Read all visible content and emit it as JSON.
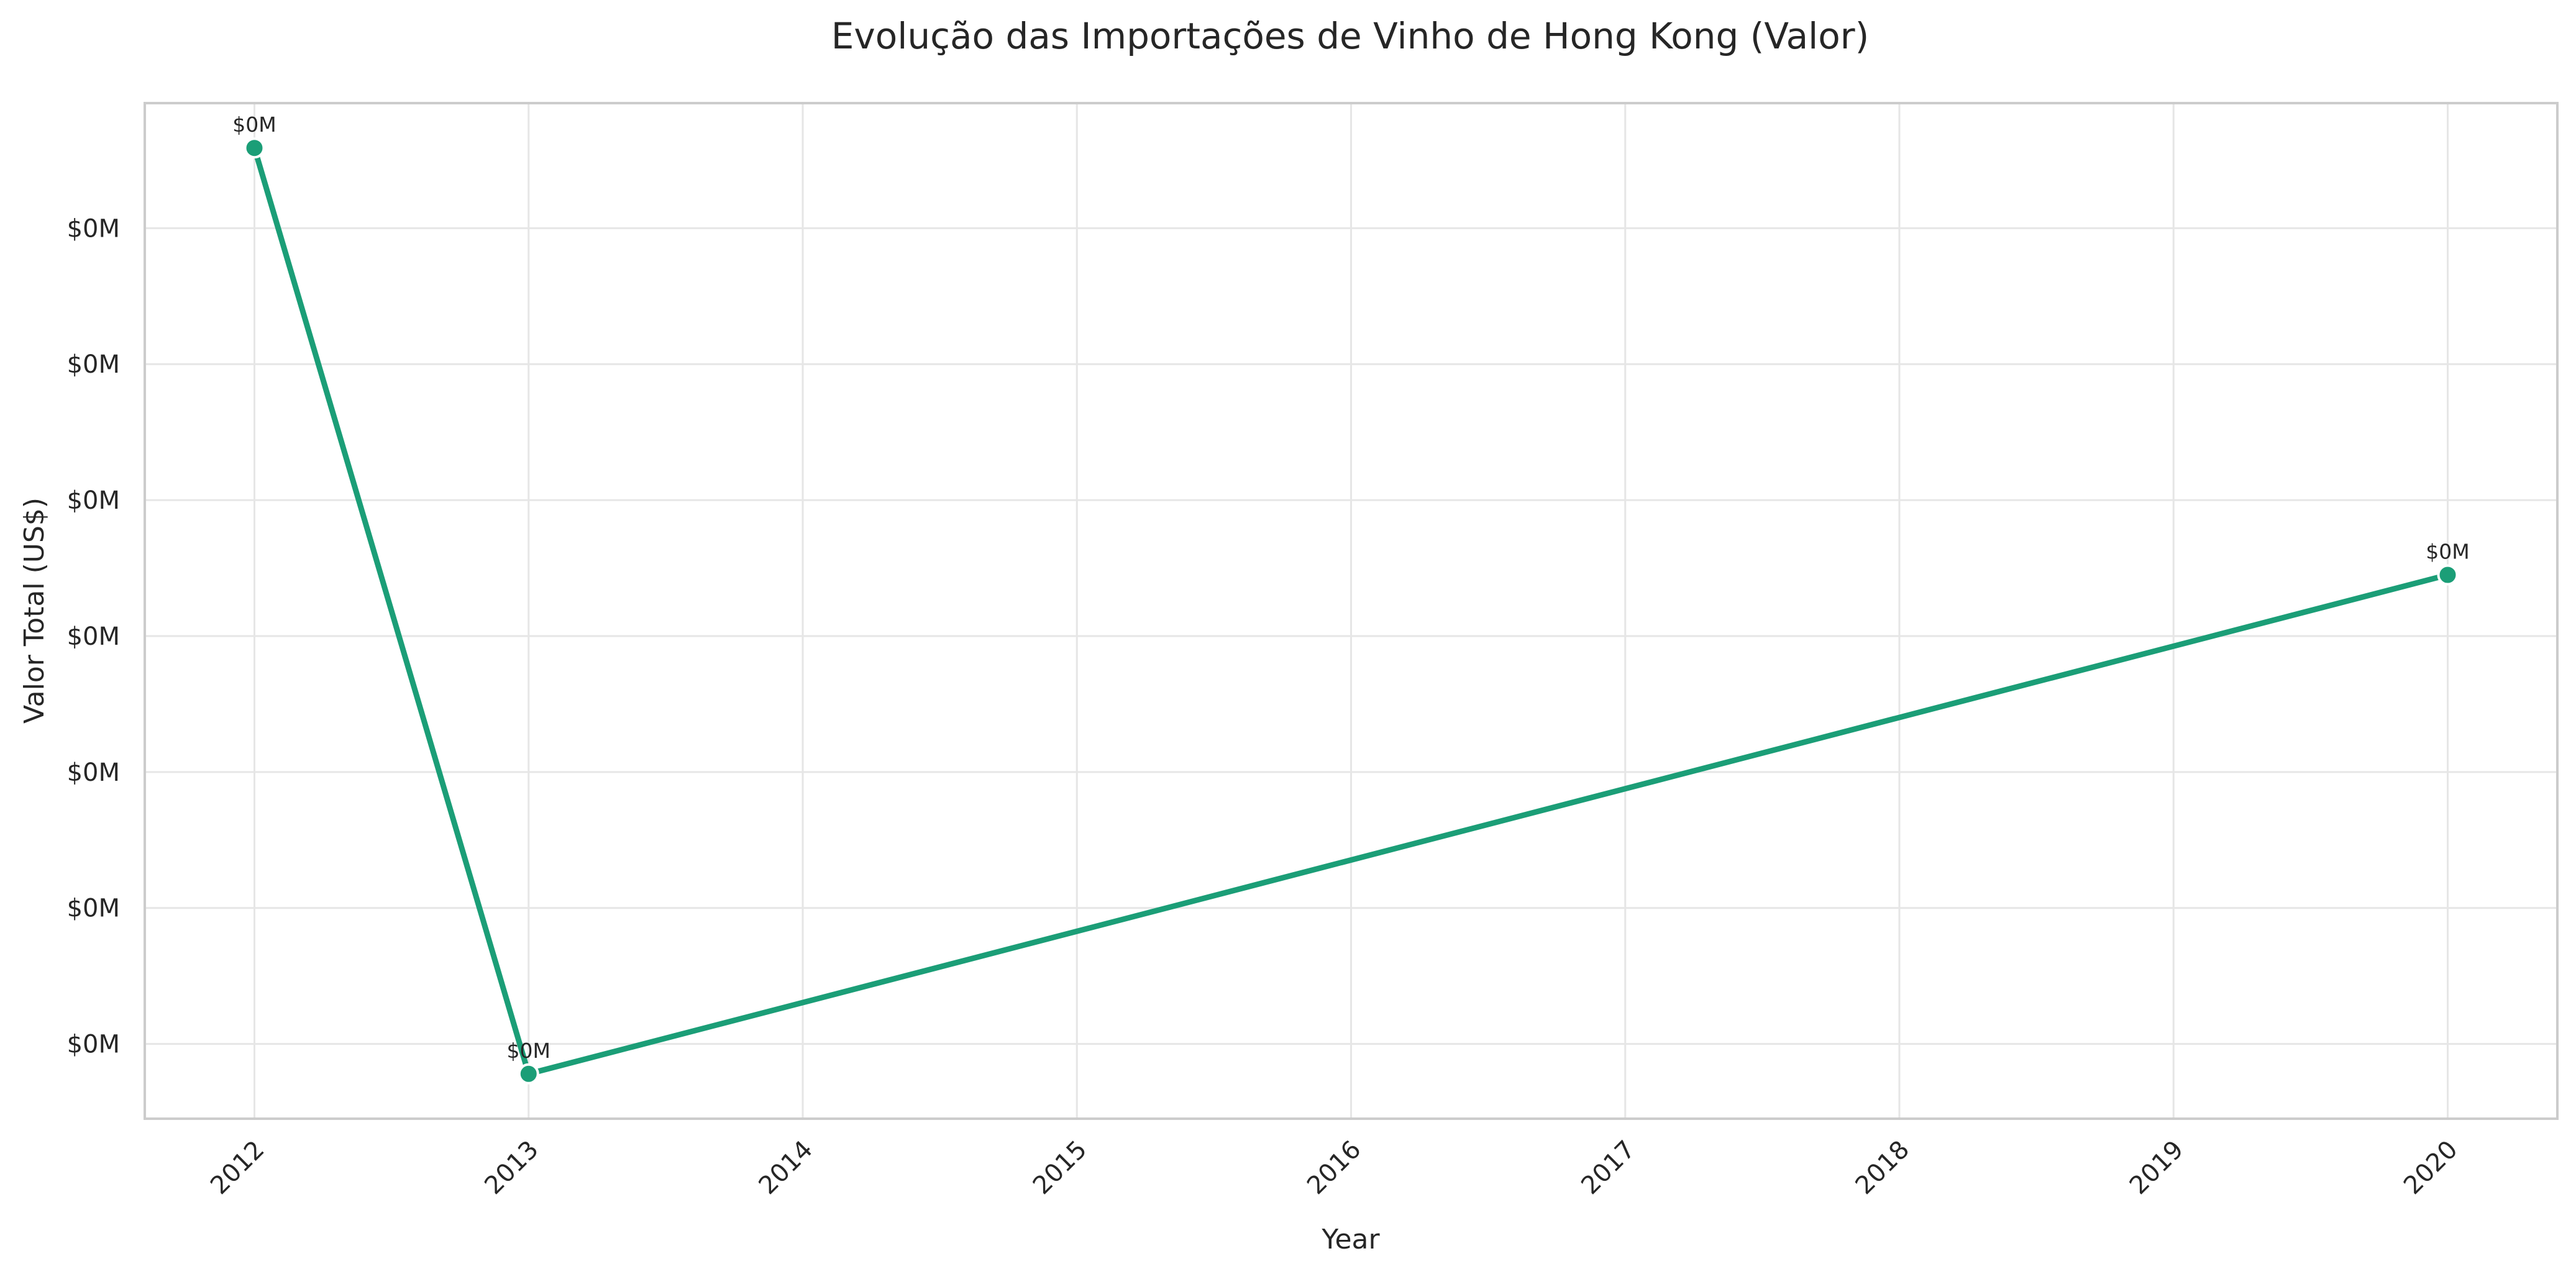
{
  "chart_data": {
    "type": "line",
    "title": "Evolução das Importações de Vinho de Hong Kong (Valor)",
    "xlabel": "Year",
    "ylabel": "Valor Total (US$)",
    "x": [
      2012,
      2013,
      2020
    ],
    "x_ticks": [
      "2012",
      "2013",
      "2014",
      "2015",
      "2016",
      "2017",
      "2018",
      "2019",
      "2020"
    ],
    "y_tick_labels": [
      "$0M",
      "$0M",
      "$0M",
      "$0M",
      "$0M",
      "$0M",
      "$0M"
    ],
    "y_ticks": [
      1000,
      2000,
      3000,
      4000,
      5000,
      6000,
      7000
    ],
    "xlim": [
      2011.6,
      2020.4
    ],
    "ylim": [
      450,
      7920
    ],
    "series": [
      {
        "values": [
          7590,
          780,
          4450
        ],
        "labels": [
          "$0M",
          "$0M",
          "$0M"
        ]
      }
    ],
    "grid": true,
    "color": "#1b9e77"
  }
}
